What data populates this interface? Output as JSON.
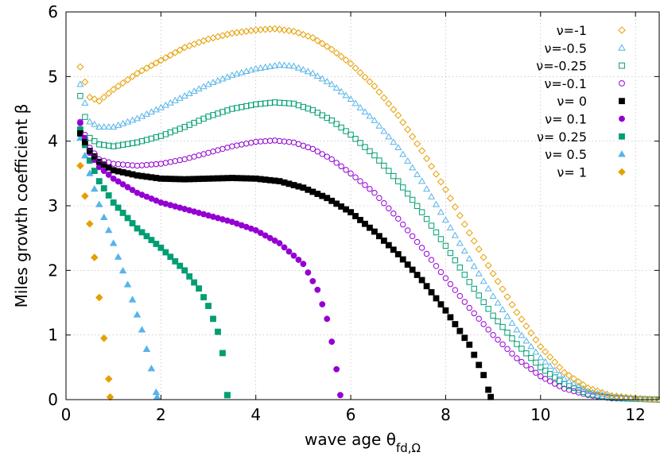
{
  "chart_data": {
    "type": "scatter",
    "title": "",
    "xlabel": "wave age θ",
    "xlabel_sub": "fd,Ω",
    "ylabel": "Miles growth coefficient β",
    "xlim": [
      0,
      12.5
    ],
    "ylim": [
      0,
      6
    ],
    "x_ticks": [
      0,
      2,
      4,
      6,
      8,
      10,
      12
    ],
    "y_ticks": [
      0,
      1,
      2,
      3,
      4,
      5,
      6
    ],
    "grid": true,
    "legend_position": "top-right",
    "series": [
      {
        "name": "ν=-1",
        "color": "#e69f00",
        "marker": "diamond",
        "filled": false,
        "x_start": 0.3,
        "x_end": 12.5,
        "anchors": [
          [
            0.3,
            5.15
          ],
          [
            0.5,
            4.68
          ],
          [
            0.7,
            4.62
          ],
          [
            1.0,
            4.8
          ],
          [
            1.5,
            5.05
          ],
          [
            2.0,
            5.25
          ],
          [
            2.5,
            5.45
          ],
          [
            3.0,
            5.58
          ],
          [
            3.5,
            5.67
          ],
          [
            4.0,
            5.72
          ],
          [
            4.4,
            5.74
          ],
          [
            4.8,
            5.7
          ],
          [
            5.2,
            5.6
          ],
          [
            5.6,
            5.42
          ],
          [
            6.0,
            5.2
          ],
          [
            6.5,
            4.85
          ],
          [
            7.0,
            4.4
          ],
          [
            7.5,
            3.85
          ],
          [
            8.0,
            3.25
          ],
          [
            8.5,
            2.58
          ],
          [
            9.0,
            1.95
          ],
          [
            9.5,
            1.35
          ],
          [
            10.0,
            0.82
          ],
          [
            10.5,
            0.42
          ],
          [
            11.0,
            0.18
          ],
          [
            11.5,
            0.06
          ],
          [
            12.0,
            0.02
          ],
          [
            12.5,
            0.0
          ]
        ]
      },
      {
        "name": "ν=-0.5",
        "color": "#56b4e9",
        "marker": "triangle",
        "filled": false,
        "x_start": 0.3,
        "x_end": 12.5,
        "anchors": [
          [
            0.3,
            4.88
          ],
          [
            0.5,
            4.3
          ],
          [
            0.7,
            4.22
          ],
          [
            1.0,
            4.22
          ],
          [
            1.5,
            4.35
          ],
          [
            2.0,
            4.52
          ],
          [
            2.5,
            4.7
          ],
          [
            3.0,
            4.88
          ],
          [
            3.5,
            5.02
          ],
          [
            4.0,
            5.12
          ],
          [
            4.5,
            5.18
          ],
          [
            4.8,
            5.16
          ],
          [
            5.2,
            5.05
          ],
          [
            5.6,
            4.88
          ],
          [
            6.0,
            4.65
          ],
          [
            6.5,
            4.32
          ],
          [
            7.0,
            3.9
          ],
          [
            7.5,
            3.38
          ],
          [
            8.0,
            2.78
          ],
          [
            8.5,
            2.18
          ],
          [
            9.0,
            1.6
          ],
          [
            9.5,
            1.08
          ],
          [
            10.0,
            0.65
          ],
          [
            10.5,
            0.32
          ],
          [
            11.0,
            0.13
          ],
          [
            11.5,
            0.04
          ],
          [
            12.0,
            0.01
          ],
          [
            12.5,
            0.0
          ]
        ]
      },
      {
        "name": "ν=-0.25",
        "color": "#009e73",
        "marker": "square",
        "filled": false,
        "x_start": 0.3,
        "x_end": 12.5,
        "anchors": [
          [
            0.3,
            4.7
          ],
          [
            0.5,
            4.05
          ],
          [
            0.7,
            3.95
          ],
          [
            1.0,
            3.92
          ],
          [
            1.5,
            3.98
          ],
          [
            2.0,
            4.08
          ],
          [
            2.5,
            4.22
          ],
          [
            3.0,
            4.38
          ],
          [
            3.5,
            4.5
          ],
          [
            4.0,
            4.57
          ],
          [
            4.4,
            4.6
          ],
          [
            4.8,
            4.58
          ],
          [
            5.2,
            4.48
          ],
          [
            5.6,
            4.32
          ],
          [
            6.0,
            4.1
          ],
          [
            6.5,
            3.78
          ],
          [
            7.0,
            3.38
          ],
          [
            7.5,
            2.9
          ],
          [
            8.0,
            2.38
          ],
          [
            8.5,
            1.82
          ],
          [
            9.0,
            1.3
          ],
          [
            9.5,
            0.86
          ],
          [
            10.0,
            0.5
          ],
          [
            10.5,
            0.24
          ],
          [
            11.0,
            0.09
          ],
          [
            11.5,
            0.03
          ],
          [
            12.0,
            0.01
          ],
          [
            12.5,
            0.0
          ]
        ]
      },
      {
        "name": "ν=-0.1",
        "color": "#9400d3",
        "marker": "circle",
        "filled": false,
        "x_start": 0.3,
        "x_end": 12.5,
        "anchors": [
          [
            0.3,
            4.3
          ],
          [
            0.5,
            3.9
          ],
          [
            0.7,
            3.72
          ],
          [
            1.0,
            3.65
          ],
          [
            1.5,
            3.62
          ],
          [
            2.0,
            3.65
          ],
          [
            2.5,
            3.72
          ],
          [
            3.0,
            3.82
          ],
          [
            3.5,
            3.92
          ],
          [
            4.0,
            3.99
          ],
          [
            4.4,
            4.01
          ],
          [
            4.8,
            3.98
          ],
          [
            5.2,
            3.88
          ],
          [
            5.6,
            3.72
          ],
          [
            6.0,
            3.5
          ],
          [
            6.5,
            3.2
          ],
          [
            7.0,
            2.8
          ],
          [
            7.5,
            2.35
          ],
          [
            8.0,
            1.88
          ],
          [
            8.5,
            1.42
          ],
          [
            9.0,
            1.0
          ],
          [
            9.5,
            0.64
          ],
          [
            10.0,
            0.36
          ],
          [
            10.5,
            0.17
          ],
          [
            11.0,
            0.07
          ],
          [
            11.5,
            0.02
          ],
          [
            12.0,
            0.01
          ],
          [
            12.5,
            0.0
          ]
        ]
      },
      {
        "name": "ν= 0",
        "color": "#000000",
        "marker": "square",
        "filled": true,
        "x_start": 0.3,
        "x_end": 8.95,
        "anchors": [
          [
            0.3,
            4.12
          ],
          [
            0.5,
            3.85
          ],
          [
            0.7,
            3.68
          ],
          [
            1.0,
            3.55
          ],
          [
            1.5,
            3.47
          ],
          [
            2.0,
            3.42
          ],
          [
            2.5,
            3.41
          ],
          [
            3.0,
            3.42
          ],
          [
            3.5,
            3.43
          ],
          [
            4.0,
            3.42
          ],
          [
            4.5,
            3.38
          ],
          [
            5.0,
            3.28
          ],
          [
            5.5,
            3.12
          ],
          [
            6.0,
            2.9
          ],
          [
            6.5,
            2.6
          ],
          [
            7.0,
            2.25
          ],
          [
            7.5,
            1.85
          ],
          [
            8.0,
            1.38
          ],
          [
            8.5,
            0.85
          ],
          [
            8.8,
            0.38
          ],
          [
            8.95,
            0.04
          ]
        ]
      },
      {
        "name": "ν= 0.1",
        "color": "#9400d3",
        "marker": "circle",
        "filled": true,
        "x_start": 0.3,
        "x_end": 5.78,
        "anchors": [
          [
            0.3,
            4.28
          ],
          [
            0.5,
            3.82
          ],
          [
            0.7,
            3.6
          ],
          [
            1.0,
            3.42
          ],
          [
            1.5,
            3.2
          ],
          [
            2.0,
            3.05
          ],
          [
            2.5,
            2.95
          ],
          [
            3.0,
            2.85
          ],
          [
            3.5,
            2.75
          ],
          [
            4.0,
            2.62
          ],
          [
            4.5,
            2.42
          ],
          [
            5.0,
            2.1
          ],
          [
            5.3,
            1.7
          ],
          [
            5.5,
            1.25
          ],
          [
            5.65,
            0.72
          ],
          [
            5.78,
            0.07
          ]
        ]
      },
      {
        "name": "ν= 0.25",
        "color": "#009e73",
        "marker": "square",
        "filled": true,
        "x_start": 0.3,
        "x_end": 3.4,
        "anchors": [
          [
            0.3,
            4.18
          ],
          [
            0.5,
            3.7
          ],
          [
            0.7,
            3.38
          ],
          [
            1.0,
            3.05
          ],
          [
            1.5,
            2.65
          ],
          [
            2.0,
            2.35
          ],
          [
            2.5,
            2.0
          ],
          [
            2.8,
            1.72
          ],
          [
            3.0,
            1.45
          ],
          [
            3.2,
            1.05
          ],
          [
            3.3,
            0.72
          ],
          [
            3.4,
            0.07
          ]
        ]
      },
      {
        "name": "ν= 0.5",
        "color": "#56b4e9",
        "marker": "triangle",
        "filled": true,
        "x_start": 0.3,
        "x_end": 1.92,
        "anchors": [
          [
            0.3,
            4.05
          ],
          [
            0.5,
            3.5
          ],
          [
            0.7,
            3.02
          ],
          [
            1.0,
            2.42
          ],
          [
            1.3,
            1.78
          ],
          [
            1.6,
            1.08
          ],
          [
            1.8,
            0.48
          ],
          [
            1.92,
            0.04
          ]
        ]
      },
      {
        "name": "ν= 1",
        "color": "#e69f00",
        "marker": "diamond",
        "filled": true,
        "x_start": 0.3,
        "x_end": 0.93,
        "anchors": [
          [
            0.3,
            3.62
          ],
          [
            0.4,
            3.15
          ],
          [
            0.5,
            2.72
          ],
          [
            0.6,
            2.2
          ],
          [
            0.7,
            1.58
          ],
          [
            0.8,
            0.95
          ],
          [
            0.9,
            0.32
          ],
          [
            0.93,
            0.04
          ]
        ]
      }
    ]
  }
}
